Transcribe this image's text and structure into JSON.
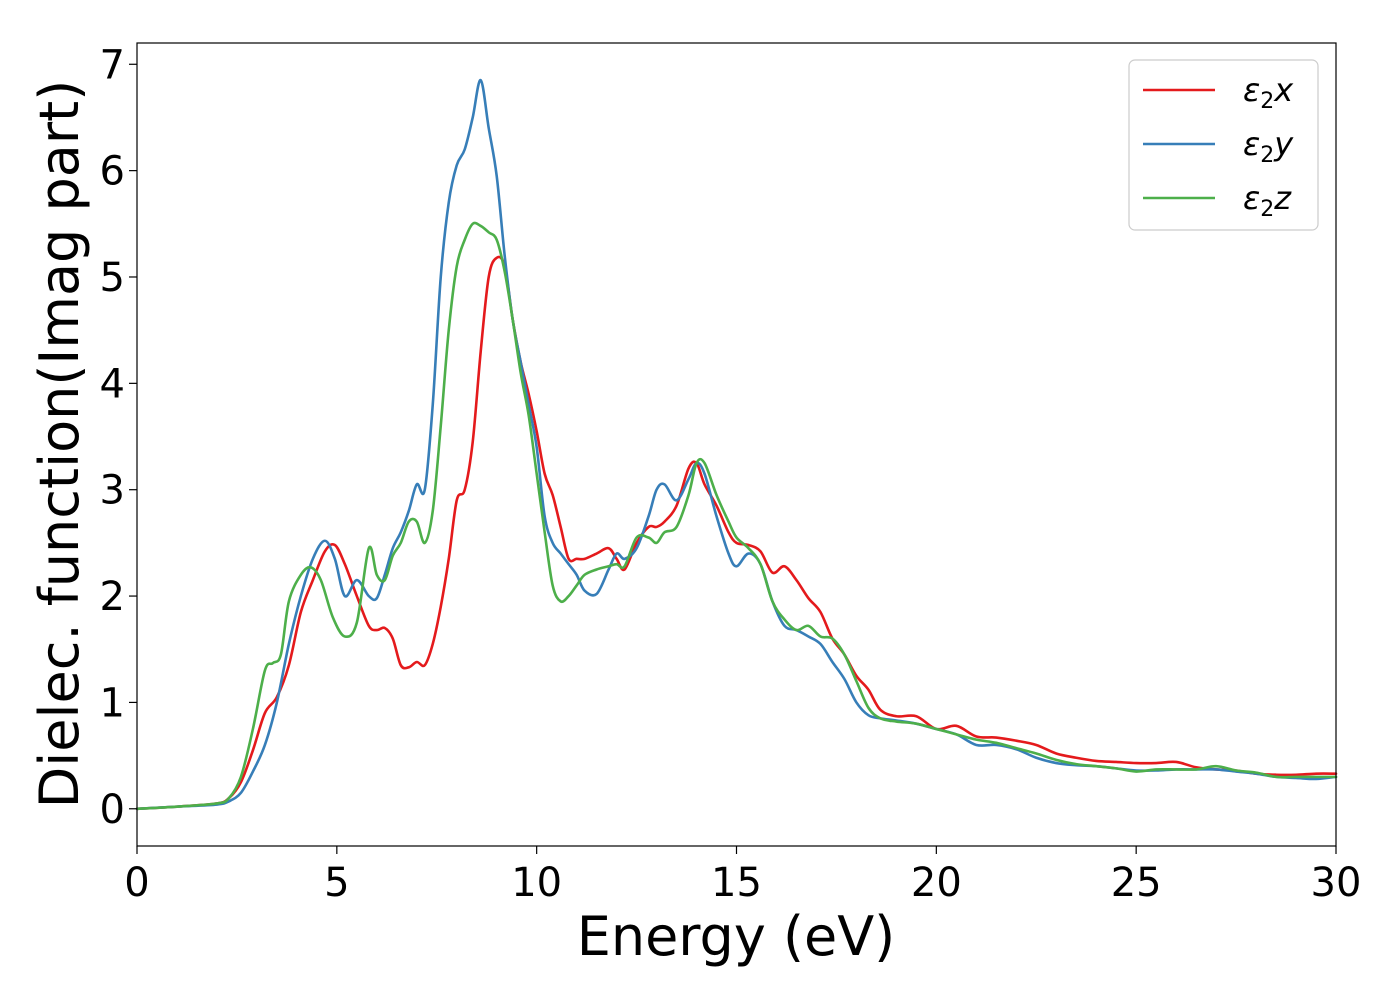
{
  "chart_data": {
    "type": "line",
    "title": "",
    "xlabel": "Energy (eV)",
    "ylabel": "Dielec. function(Imag part)",
    "xlim": [
      0,
      30
    ],
    "ylim": [
      -0.35,
      7.2
    ],
    "xticks": [
      0,
      5,
      10,
      15,
      20,
      25,
      30
    ],
    "yticks": [
      0,
      1,
      2,
      3,
      4,
      5,
      6,
      7
    ],
    "grid": false,
    "legend_position": "top-right",
    "series": [
      {
        "name": "ε2x",
        "legend_base": "ε",
        "legend_sub": "2",
        "legend_tail": "x",
        "color": "#e41a1c",
        "x": [
          0,
          1,
          2,
          2.3,
          2.6,
          2.9,
          3.2,
          3.5,
          3.8,
          4.1,
          4.4,
          4.7,
          4.95,
          5.2,
          5.5,
          5.8,
          6.0,
          6.2,
          6.4,
          6.6,
          6.8,
          7.0,
          7.2,
          7.4,
          7.6,
          7.8,
          8.0,
          8.2,
          8.4,
          8.6,
          8.8,
          9.0,
          9.2,
          9.4,
          9.6,
          9.8,
          10.0,
          10.2,
          10.4,
          10.6,
          10.8,
          11.0,
          11.2,
          11.5,
          11.8,
          12.0,
          12.2,
          12.5,
          12.8,
          13.0,
          13.2,
          13.5,
          13.8,
          14.0,
          14.2,
          14.5,
          14.8,
          15.0,
          15.3,
          15.6,
          15.9,
          16.2,
          16.5,
          16.8,
          17.1,
          17.4,
          17.7,
          18.0,
          18.3,
          18.6,
          19.0,
          19.5,
          20.0,
          20.5,
          21.0,
          21.5,
          22.0,
          22.5,
          23.0,
          23.5,
          24.0,
          24.5,
          25.0,
          25.5,
          26.0,
          26.5,
          27.0,
          27.5,
          28.0,
          28.5,
          29.0,
          29.5,
          30.0
        ],
        "y": [
          0,
          0.02,
          0.05,
          0.1,
          0.25,
          0.55,
          0.9,
          1.05,
          1.35,
          1.85,
          2.15,
          2.42,
          2.48,
          2.3,
          2.0,
          1.72,
          1.68,
          1.7,
          1.6,
          1.35,
          1.33,
          1.38,
          1.35,
          1.55,
          1.9,
          2.35,
          2.9,
          3.0,
          3.45,
          4.3,
          5.0,
          5.18,
          5.1,
          4.6,
          4.2,
          3.9,
          3.55,
          3.15,
          2.95,
          2.65,
          2.35,
          2.35,
          2.35,
          2.4,
          2.45,
          2.35,
          2.25,
          2.5,
          2.65,
          2.65,
          2.7,
          2.85,
          3.2,
          3.25,
          3.05,
          2.85,
          2.6,
          2.5,
          2.48,
          2.42,
          2.22,
          2.28,
          2.15,
          1.98,
          1.85,
          1.6,
          1.45,
          1.25,
          1.12,
          0.93,
          0.87,
          0.87,
          0.75,
          0.78,
          0.68,
          0.67,
          0.64,
          0.6,
          0.52,
          0.48,
          0.45,
          0.44,
          0.43,
          0.43,
          0.44,
          0.39,
          0.37,
          0.36,
          0.33,
          0.32,
          0.32,
          0.33,
          0.33
        ]
      },
      {
        "name": "ε2y",
        "legend_base": "ε",
        "legend_sub": "2",
        "legend_tail": "y",
        "color": "#377eb8",
        "x": [
          0,
          1,
          2,
          2.3,
          2.6,
          2.9,
          3.2,
          3.5,
          3.8,
          4.1,
          4.4,
          4.7,
          4.95,
          5.2,
          5.5,
          5.8,
          6.0,
          6.2,
          6.4,
          6.6,
          6.8,
          7.0,
          7.2,
          7.4,
          7.6,
          7.8,
          8.0,
          8.2,
          8.4,
          8.6,
          8.8,
          9.0,
          9.2,
          9.4,
          9.6,
          9.8,
          10.0,
          10.2,
          10.4,
          10.6,
          10.8,
          11.0,
          11.2,
          11.5,
          11.8,
          12.0,
          12.2,
          12.5,
          12.8,
          13.0,
          13.2,
          13.5,
          13.8,
          14.0,
          14.2,
          14.5,
          14.8,
          15.0,
          15.3,
          15.6,
          15.9,
          16.2,
          16.5,
          16.8,
          17.1,
          17.4,
          17.7,
          18.0,
          18.3,
          18.6,
          19.0,
          19.5,
          20.0,
          20.5,
          21.0,
          21.5,
          22.0,
          22.5,
          23.0,
          23.5,
          24.0,
          24.5,
          25.0,
          25.5,
          26.0,
          26.5,
          27.0,
          27.5,
          28.0,
          28.5,
          29.0,
          29.5,
          30.0
        ],
        "y": [
          0,
          0.02,
          0.04,
          0.07,
          0.15,
          0.35,
          0.6,
          1.0,
          1.55,
          2.0,
          2.35,
          2.52,
          2.35,
          2.0,
          2.15,
          2.0,
          1.98,
          2.2,
          2.45,
          2.6,
          2.8,
          3.05,
          3.0,
          3.8,
          5.0,
          5.7,
          6.05,
          6.2,
          6.5,
          6.85,
          6.4,
          5.95,
          5.2,
          4.6,
          4.2,
          3.8,
          3.4,
          2.75,
          2.5,
          2.4,
          2.3,
          2.2,
          2.05,
          2.02,
          2.25,
          2.4,
          2.35,
          2.45,
          2.75,
          3.0,
          3.05,
          2.9,
          3.1,
          3.25,
          3.15,
          2.75,
          2.4,
          2.28,
          2.4,
          2.3,
          1.95,
          1.72,
          1.68,
          1.62,
          1.55,
          1.38,
          1.22,
          1.0,
          0.88,
          0.85,
          0.83,
          0.8,
          0.75,
          0.7,
          0.6,
          0.6,
          0.56,
          0.48,
          0.43,
          0.41,
          0.4,
          0.38,
          0.36,
          0.36,
          0.37,
          0.37,
          0.37,
          0.35,
          0.33,
          0.3,
          0.29,
          0.28,
          0.3
        ]
      },
      {
        "name": "ε2z",
        "legend_base": "ε",
        "legend_sub": "2",
        "legend_tail": "z",
        "color": "#4daf4a",
        "x": [
          0,
          1,
          2,
          2.3,
          2.6,
          2.9,
          3.2,
          3.4,
          3.6,
          3.8,
          4.1,
          4.35,
          4.6,
          4.9,
          5.2,
          5.5,
          5.8,
          6.0,
          6.2,
          6.4,
          6.6,
          6.8,
          7.0,
          7.2,
          7.4,
          7.6,
          7.8,
          8.0,
          8.2,
          8.4,
          8.6,
          8.8,
          9.0,
          9.2,
          9.4,
          9.6,
          9.8,
          10.0,
          10.2,
          10.4,
          10.6,
          10.8,
          11.0,
          11.2,
          11.5,
          11.8,
          12.0,
          12.2,
          12.5,
          12.8,
          13.0,
          13.2,
          13.5,
          13.8,
          14.0,
          14.2,
          14.5,
          14.8,
          15.0,
          15.3,
          15.6,
          15.9,
          16.2,
          16.5,
          16.8,
          17.1,
          17.4,
          17.7,
          18.0,
          18.3,
          18.6,
          19.0,
          19.5,
          20.0,
          20.5,
          21.0,
          21.5,
          22.0,
          22.5,
          23.0,
          23.5,
          24.0,
          24.5,
          25.0,
          25.5,
          26.0,
          26.5,
          27.0,
          27.5,
          28.0,
          28.5,
          29.0,
          29.5,
          30.0
        ],
        "y": [
          0,
          0.02,
          0.05,
          0.1,
          0.3,
          0.75,
          1.3,
          1.37,
          1.45,
          1.95,
          2.2,
          2.27,
          2.15,
          1.8,
          1.62,
          1.75,
          2.45,
          2.2,
          2.15,
          2.38,
          2.5,
          2.7,
          2.7,
          2.5,
          2.8,
          3.6,
          4.5,
          5.1,
          5.35,
          5.5,
          5.48,
          5.42,
          5.35,
          5.05,
          4.6,
          4.1,
          3.7,
          3.15,
          2.6,
          2.1,
          1.95,
          2.0,
          2.1,
          2.2,
          2.25,
          2.28,
          2.3,
          2.28,
          2.55,
          2.55,
          2.5,
          2.6,
          2.65,
          2.95,
          3.25,
          3.25,
          2.95,
          2.7,
          2.55,
          2.45,
          2.3,
          1.95,
          1.78,
          1.68,
          1.72,
          1.62,
          1.6,
          1.45,
          1.2,
          0.95,
          0.85,
          0.82,
          0.8,
          0.75,
          0.7,
          0.65,
          0.62,
          0.57,
          0.52,
          0.46,
          0.42,
          0.4,
          0.38,
          0.35,
          0.37,
          0.37,
          0.37,
          0.4,
          0.36,
          0.34,
          0.3,
          0.3,
          0.3,
          0.3
        ]
      }
    ]
  }
}
